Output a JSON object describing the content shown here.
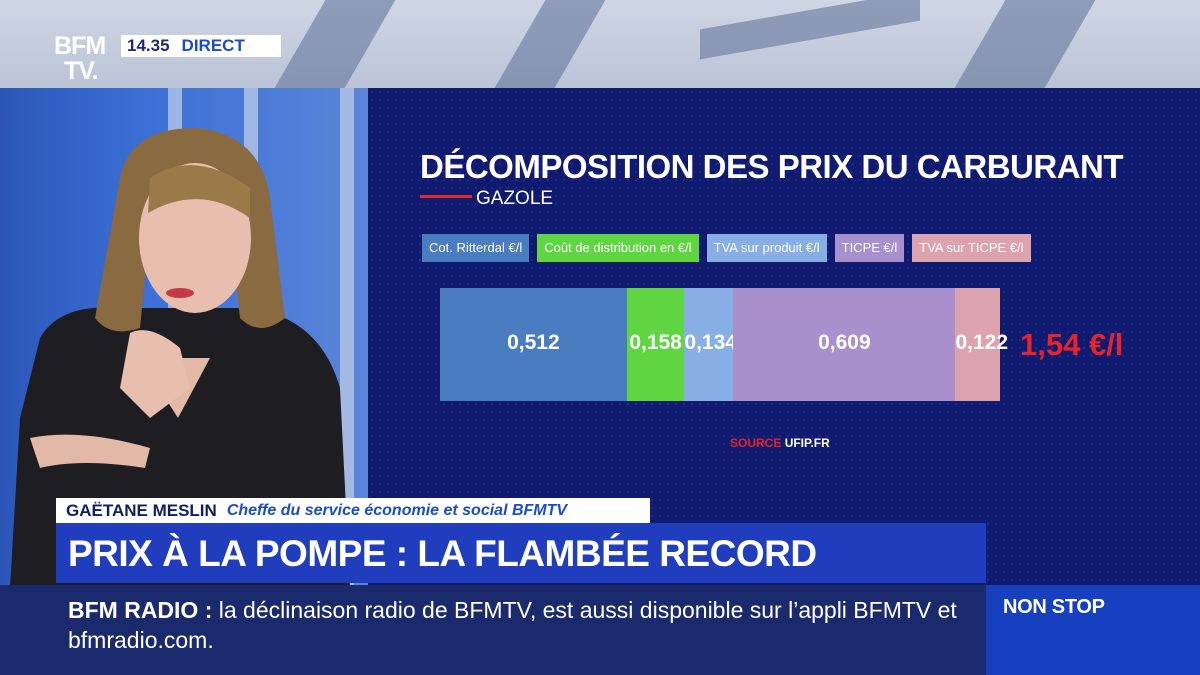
{
  "channel": {
    "logo_line1": "BFM",
    "logo_line2": "TV.",
    "time": "14.35",
    "live_label": "DIRECT"
  },
  "chart": {
    "title": "DÉCOMPOSITION DES PRIX DU CARBURANT",
    "subtitle": "GAZOLE",
    "total": "1,54 €/l",
    "source_prefix": "SOURCE",
    "source_name": "UFIP.FR"
  },
  "chart_data": {
    "type": "bar",
    "title": "DÉCOMPOSITION DES PRIX DU CARBURANT",
    "subtitle": "GAZOLE",
    "orientation": "horizontal-stacked",
    "categories": [
      "GAZOLE"
    ],
    "series": [
      {
        "name": "Cot. Ritterdal €/l",
        "values": [
          0.512
        ],
        "label": "0,512",
        "color": "#4a7cc0"
      },
      {
        "name": "Coût de distribution  en €/l",
        "values": [
          0.158
        ],
        "label": "0,158",
        "color": "#5fd542"
      },
      {
        "name": "TVA sur produit €/l",
        "values": [
          0.134
        ],
        "label": "0,134",
        "color": "#88aee6"
      },
      {
        "name": "TICPE €/l",
        "values": [
          0.609
        ],
        "label": "0,609",
        "color": "#a890cc"
      },
      {
        "name": "TVA sur TICPE €/l",
        "values": [
          0.122
        ],
        "label": "0,122",
        "color": "#dca2ae"
      }
    ],
    "total": "1,54 €/l"
  },
  "lower_third": {
    "guest_name": "GAËTANE MESLIN",
    "guest_role": "Cheffe du service économie et social BFMTV",
    "headline": "PRIX À LA POMPE : LA FLAMBÉE RECORD"
  },
  "ticker": {
    "label": "BFM RADIO :",
    "text": "la déclinaison radio de BFMTV, est aussi disponible sur l’appli BFMTV et bfmradio.com."
  },
  "nonstop": "NON STOP"
}
